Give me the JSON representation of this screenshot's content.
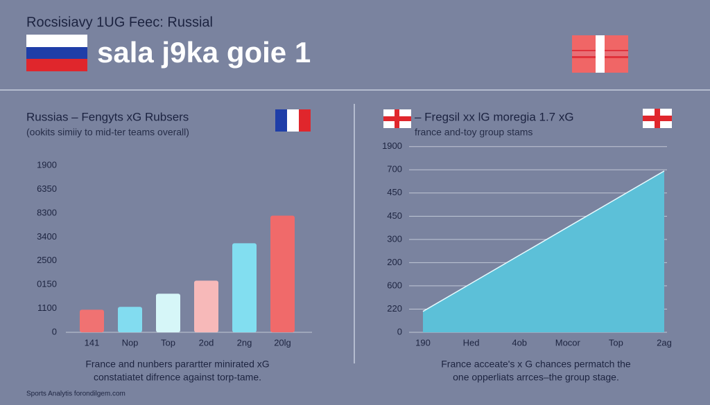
{
  "header": {
    "kicker": "Rocsisiavy 1UG Feec: Russial",
    "title": "sala j9ka goie 1"
  },
  "footer": "Sports Analytis forondilgem.com",
  "chart_data": [
    {
      "type": "bar",
      "title": "Russias – Fengyts xG Rubsers",
      "subtitle": "(ookits simiiy to mid-ter teams overall)",
      "categories": [
        "141",
        "Nop",
        "Top",
        "2od",
        "2ng",
        "20lg"
      ],
      "values": [
        0.95,
        1.07,
        1.62,
        2.17,
        3.74,
        4.9
      ],
      "colors": [
        "#f07272",
        "#82dcf0",
        "#d6f6f8",
        "#f7b9b9",
        "#82def0",
        "#f06a6a"
      ],
      "ylim": [
        0,
        7.5
      ],
      "yticks": [
        0,
        {
          "value": 1,
          "label": "1100"
        },
        {
          "value": 2,
          "label": "0150"
        },
        {
          "value": 3,
          "label": "2500"
        },
        {
          "value": 4,
          "label": "3400"
        },
        {
          "value": 5,
          "label": "8300"
        },
        {
          "value": 6,
          "label": "6350"
        },
        {
          "value": 7,
          "label": "1900"
        }
      ],
      "grid": false,
      "caption": [
        "France and nunbers parartter minirated xG",
        "constatiatet difrence against torp-tame."
      ]
    },
    {
      "type": "area",
      "title": "– Fregsil xx lG moregia 1.7 xG",
      "subtitle": "france and-toy group stams",
      "categories": [
        "190",
        "Hed",
        "4ob",
        "Mocor",
        "Top",
        "2ag"
      ],
      "values": [
        0.9,
        2.11,
        3.32,
        4.53,
        5.74,
        6.95
      ],
      "color": "#5cc0d8",
      "ylim": [
        0,
        8.2
      ],
      "yticks": [
        0,
        {
          "value": 1,
          "label": "220"
        },
        {
          "value": 2,
          "label": "600"
        },
        {
          "value": 3,
          "label": "200"
        },
        {
          "value": 4,
          "label": "300"
        },
        {
          "value": 5,
          "label": "450"
        },
        {
          "value": 6,
          "label": "450"
        },
        {
          "value": 7,
          "label": "700"
        },
        {
          "value": 8,
          "label": "1900"
        }
      ],
      "grid": true,
      "caption": [
        "France acceate's x G chances permatch the",
        "one opperliats arrces–the group stage."
      ]
    }
  ]
}
